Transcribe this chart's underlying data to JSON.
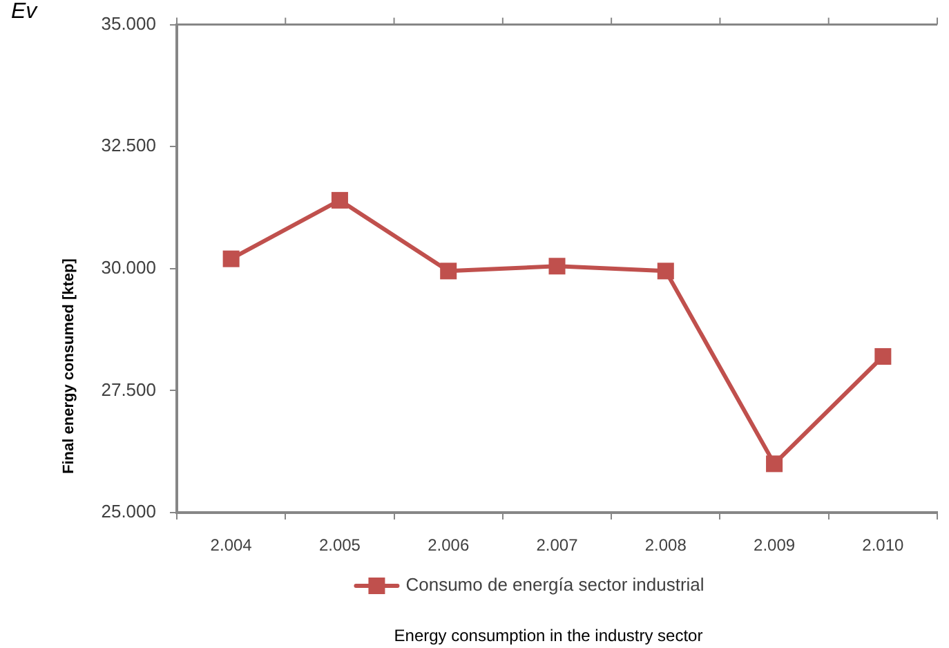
{
  "chart_data": {
    "type": "line",
    "title": "Ev",
    "ylabel": "Final energy consumed [ktep]",
    "annotations": [
      "Energy consumption in the industry sector"
    ],
    "categories": [
      "2.004",
      "2.005",
      "2.006",
      "2.007",
      "2.008",
      "2.009",
      "2.010"
    ],
    "series": [
      {
        "name": "Consumo de energía sector industrial",
        "color": "#c0504d",
        "values": [
          30200,
          31400,
          29950,
          30050,
          29950,
          26000,
          28200
        ]
      }
    ],
    "ylim": [
      25000,
      35000
    ],
    "yticks": [
      {
        "value": 25000,
        "label": "25.000"
      },
      {
        "value": 27500,
        "label": "27.500"
      },
      {
        "value": 30000,
        "label": "30.000"
      },
      {
        "value": 32500,
        "label": "32.500"
      },
      {
        "value": 35000,
        "label": "35.000"
      }
    ],
    "legend": "bottom",
    "marker": "square",
    "line_style": "solid"
  }
}
